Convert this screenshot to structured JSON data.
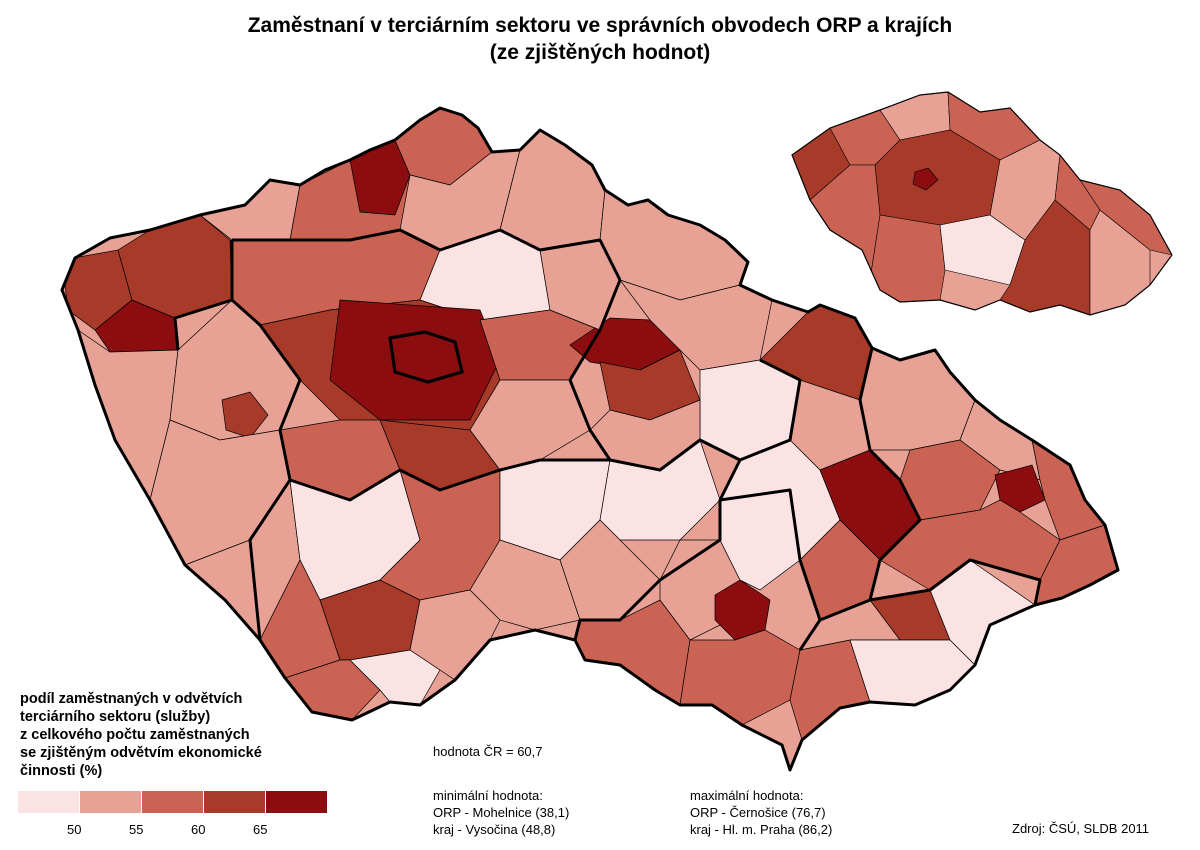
{
  "title_line1": "Zaměstnaní v terciárním sektoru ve správních obvodech ORP a krajích",
  "title_line2": "(ze zjištěných hodnot)",
  "legend": {
    "title_lines": [
      "podíl zaměstnaných v odvětvích",
      "terciárního sektoru (služby)",
      "z celkového počtu zaměstnaných",
      "se zjištěným odvětvím ekonomické",
      "činnosti (%)"
    ],
    "colors": [
      "#fbe3e3",
      "#e8a195",
      "#cb6355",
      "#a83a2a",
      "#8b0d0f"
    ],
    "ticks": [
      "50",
      "55",
      "60",
      "65"
    ]
  },
  "national_value": "hodnota ČR = 60,7",
  "minimum": {
    "heading": "minimální hodnota:",
    "orp": "ORP  - Mohelnice (38,1)",
    "kraj": "kraj   - Vysočina  (48,8)"
  },
  "maximum": {
    "heading": "maximální hodnota:",
    "orp": "ORP - Černošice (76,7)",
    "kraj": "kraj   - Hl. m. Praha (86,2)"
  },
  "source": "Zdroj: ČSÚ, SLDB 2011"
}
